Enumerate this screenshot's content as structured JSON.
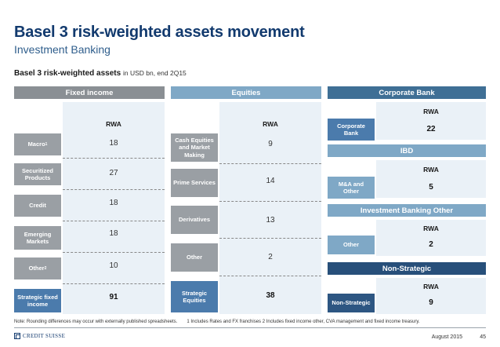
{
  "header": {
    "title": "Basel 3 risk-weighted assets movement",
    "subtitle": "Investment Banking"
  },
  "section": {
    "label_bold": "Basel 3 risk-weighted assets",
    "label_unit": "in USD bn, end 2Q15"
  },
  "rwa_label": "RWA",
  "fixed_income": {
    "title": "Fixed income",
    "rows": [
      {
        "label": "Macro",
        "sup": "1",
        "value": "18"
      },
      {
        "label": "Securitized Products",
        "sup": "",
        "value": "27"
      },
      {
        "label": "Credit",
        "sup": "",
        "value": "18"
      },
      {
        "label": "Emerging Markets",
        "sup": "",
        "value": "18"
      },
      {
        "label": "Other",
        "sup": "2",
        "value": "10"
      },
      {
        "label": "Strategic fixed income",
        "sup": "",
        "value": "91"
      }
    ]
  },
  "equities": {
    "title": "Equities",
    "rows": [
      {
        "label": "Cash Equities and Market Making",
        "value": "9"
      },
      {
        "label": "Prime Services",
        "value": "14"
      },
      {
        "label": "Derivatives",
        "value": "13"
      },
      {
        "label": "Other",
        "value": "2"
      },
      {
        "label": "Strategic Equities",
        "value": "38"
      }
    ]
  },
  "corporate_bank": {
    "title": "Corporate Bank",
    "row_label": "Corporate Bank",
    "value": "22"
  },
  "ibd": {
    "title": "IBD",
    "row_label": "M&A and Other",
    "value": "5"
  },
  "ib_other": {
    "title": "Investment Banking Other",
    "row_label": "Other",
    "value": "2"
  },
  "non_strategic": {
    "title": "Non-Strategic",
    "row_label": "Non-Strategic",
    "value": "9"
  },
  "footer": {
    "note": "Note: Rounding differences may occur with externally published spreadsheets.",
    "footnotes": "1 Includes Rates and FX franchises 2 Includes fixed income other, CVA management and fixed income treasury.",
    "logo_text": "CREDIT SUISSE",
    "date": "August 2015",
    "page": "45"
  },
  "colors": {
    "title": "#123a6e",
    "head_gray": "#8a8f94",
    "head_light_blue": "#7fa8c6",
    "head_teal": "#3f6f95",
    "head_dark": "#274f7a",
    "shade": "#eaf1f7"
  }
}
